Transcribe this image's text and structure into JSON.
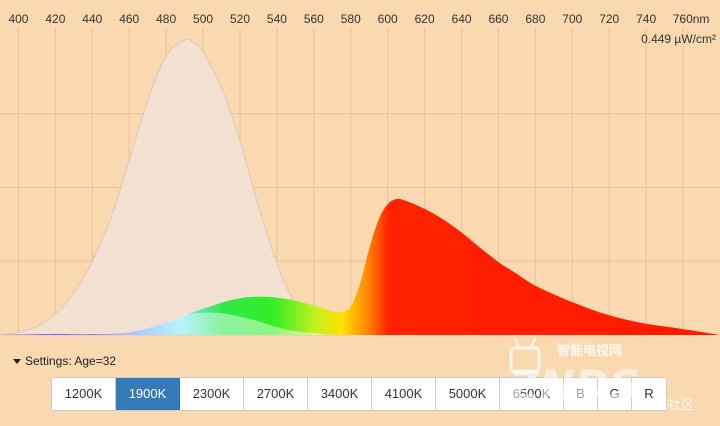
{
  "chart_data": {
    "type": "area",
    "x_ticks": [
      "400",
      "420",
      "440",
      "460",
      "480",
      "500",
      "520",
      "540",
      "560",
      "580",
      "600",
      "620",
      "640",
      "660",
      "680",
      "700",
      "720",
      "740",
      "760nm"
    ],
    "xlim": [
      390,
      780
    ],
    "ylim": [
      0,
      0.449
    ],
    "y_max_label": "0.449 µW/cm²",
    "grid": true,
    "series": [
      {
        "kind": "sensitivity",
        "x": [
          390,
          400,
          410,
          420,
          430,
          440,
          450,
          460,
          470,
          480,
          490,
          495,
          500,
          510,
          520,
          530,
          540,
          550,
          560,
          570,
          580
        ],
        "y": [
          0.0,
          0.004,
          0.013,
          0.032,
          0.064,
          0.112,
          0.178,
          0.266,
          0.357,
          0.425,
          0.449,
          0.445,
          0.431,
          0.376,
          0.295,
          0.196,
          0.109,
          0.047,
          0.012,
          0.002,
          0.0
        ]
      },
      {
        "kind": "emission",
        "x": [
          390,
          420,
          440,
          460,
          480,
          500,
          520,
          540,
          560,
          570,
          575,
          580,
          585,
          590,
          595,
          600,
          605,
          610,
          620,
          630,
          640,
          650,
          660,
          670,
          680,
          700,
          720,
          740,
          760,
          780
        ],
        "y": [
          0.0,
          0.001,
          0.001,
          0.004,
          0.019,
          0.04,
          0.056,
          0.057,
          0.045,
          0.036,
          0.035,
          0.043,
          0.078,
          0.131,
          0.175,
          0.199,
          0.207,
          0.204,
          0.192,
          0.176,
          0.156,
          0.133,
          0.111,
          0.093,
          0.075,
          0.05,
          0.03,
          0.017,
          0.009,
          0.0
        ]
      },
      {
        "kind": "overlap",
        "x": [
          440,
          460,
          480,
          490,
          500,
          510,
          520,
          530,
          540,
          550,
          560,
          570
        ],
        "y": [
          0.0,
          0.004,
          0.019,
          0.03,
          0.034,
          0.033,
          0.028,
          0.021,
          0.012,
          0.006,
          0.003,
          0.0
        ]
      }
    ]
  },
  "settings": {
    "label": "Settings: Age=32"
  },
  "presets": [
    {
      "label": "1200K",
      "active": false,
      "w": "w-k"
    },
    {
      "label": "1900K",
      "active": true,
      "w": "w-k"
    },
    {
      "label": "2300K",
      "active": false,
      "w": "w-k"
    },
    {
      "label": "2700K",
      "active": false,
      "w": "w-k"
    },
    {
      "label": "3400K",
      "active": false,
      "w": "w-k"
    },
    {
      "label": "4100K",
      "active": false,
      "w": "w-k"
    },
    {
      "label": "5000K",
      "active": false,
      "w": "w-k"
    },
    {
      "label": "6500K",
      "active": false,
      "w": "w-k"
    },
    {
      "label": "B",
      "active": false,
      "w": "w-s"
    },
    {
      "label": "G",
      "active": false,
      "w": "w-s"
    },
    {
      "label": "R",
      "active": false,
      "w": "w-s"
    }
  ],
  "watermark": {
    "cn_top": "智能电视网",
    "brand": "ZNDS",
    "com": ".com",
    "cn_side": "米社区"
  },
  "colors": {
    "background": "#fad9b1",
    "sensitivity_fill": "#f2e1d1",
    "active_button": "#337ab7"
  }
}
